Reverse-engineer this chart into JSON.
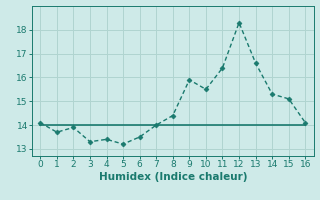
{
  "x": [
    0,
    1,
    2,
    3,
    4,
    5,
    6,
    7,
    8,
    9,
    10,
    11,
    12,
    13,
    14,
    15,
    16
  ],
  "y_curve": [
    14.1,
    13.7,
    13.9,
    13.3,
    13.4,
    13.2,
    13.5,
    14.0,
    14.4,
    15.9,
    15.5,
    16.4,
    18.3,
    16.6,
    15.3,
    15.1,
    14.1
  ],
  "y_flat": [
    14.0,
    14.0,
    14.0,
    14.0,
    14.0,
    14.0,
    14.0,
    14.0,
    14.0,
    14.0,
    14.0,
    14.0,
    14.0,
    14.0,
    14.0,
    14.0,
    14.0
  ],
  "line_color": "#1a7a6e",
  "bg_color": "#ceeae8",
  "grid_color": "#b0d4d0",
  "xlabel": "Humidex (Indice chaleur)",
  "xlim": [
    -0.5,
    16.5
  ],
  "ylim": [
    12.7,
    19.0
  ],
  "yticks": [
    13,
    14,
    15,
    16,
    17,
    18
  ],
  "xticks": [
    0,
    1,
    2,
    3,
    4,
    5,
    6,
    7,
    8,
    9,
    10,
    11,
    12,
    13,
    14,
    15,
    16
  ],
  "markersize": 2.5,
  "linewidth_curve": 1.0,
  "linewidth_flat": 1.2,
  "xlabel_fontsize": 7.5,
  "tick_fontsize": 6.5
}
